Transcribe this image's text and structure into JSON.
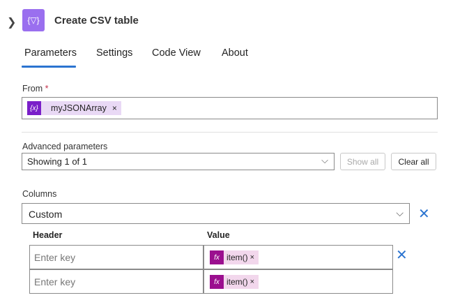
{
  "header": {
    "title": "Create CSV table",
    "icon": "data-operation-icon",
    "expand_icon": "chevron-right-icon"
  },
  "tabs": [
    {
      "label": "Parameters",
      "active": true
    },
    {
      "label": "Settings"
    },
    {
      "label": "Code View"
    },
    {
      "label": "About"
    }
  ],
  "from": {
    "label": "From",
    "required_mark": "*",
    "token": {
      "icon": "variable-icon",
      "icon_text": "{x}",
      "label": "myJSONArray",
      "remove": "×"
    }
  },
  "advanced": {
    "label": "Advanced parameters",
    "value": "Showing 1 of 1",
    "show_all": "Show all",
    "clear_all": "Clear all"
  },
  "columns": {
    "label": "Columns",
    "value": "Custom",
    "headers": {
      "header": "Header",
      "value": "Value"
    },
    "rows": [
      {
        "key_placeholder": "Enter key",
        "token_icon": "fx",
        "token": "item()",
        "remove": "×"
      },
      {
        "key_placeholder": "Enter key",
        "token_icon": "fx",
        "token": "item()",
        "remove": "×"
      }
    ]
  },
  "colors": {
    "accent": "#2b74d0",
    "variable": "#7a1fc9",
    "function": "#9b0f8f"
  }
}
